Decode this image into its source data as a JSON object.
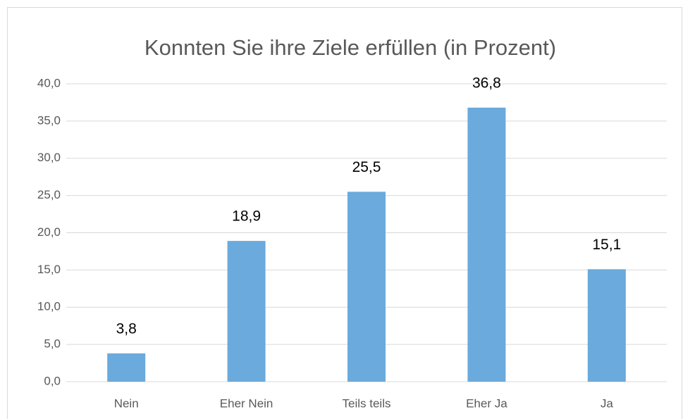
{
  "chart_data": {
    "type": "bar",
    "title": "Konnten Sie ihre Ziele erfüllen (in Prozent)",
    "categories": [
      "Nein",
      "Eher Nein",
      "Teils teils",
      "Eher Ja",
      "Ja"
    ],
    "values": [
      3.8,
      18.9,
      25.5,
      36.8,
      15.1
    ],
    "value_labels": [
      "3,8",
      "18,9",
      "25,5",
      "36,8",
      "15,1"
    ],
    "color": "#6aaadc",
    "ylim": [
      0,
      40
    ],
    "yticks": [
      {
        "value": 0,
        "label": "0,0"
      },
      {
        "value": 5,
        "label": "5,0"
      },
      {
        "value": 10,
        "label": "10,0"
      },
      {
        "value": 15,
        "label": "15,0"
      },
      {
        "value": 20,
        "label": "20,0"
      },
      {
        "value": 25,
        "label": "25,0"
      },
      {
        "value": 30,
        "label": "30,0"
      },
      {
        "value": 35,
        "label": "35,0"
      },
      {
        "value": 40,
        "label": "40,0"
      }
    ],
    "grid": true
  }
}
